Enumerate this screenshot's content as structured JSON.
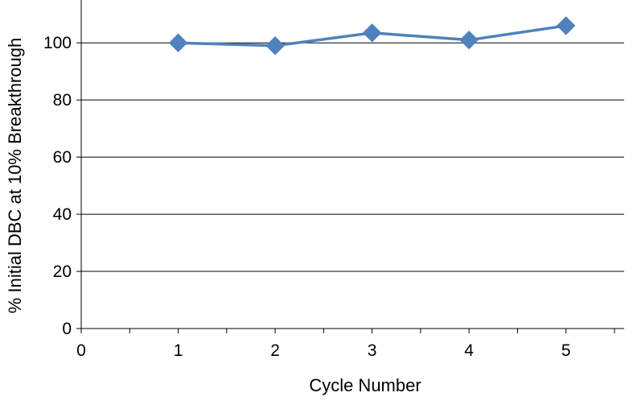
{
  "chart_data": {
    "type": "line",
    "title": "",
    "xlabel": "Cycle Number",
    "ylabel": "% Initial DBC at 10% Breakthrough",
    "xlim": [
      0,
      5.6
    ],
    "ylim": [
      0,
      115
    ],
    "x_ticks": [
      0,
      1,
      2,
      3,
      4,
      5
    ],
    "y_ticks": [
      0,
      20,
      40,
      60,
      80,
      100
    ],
    "grid": "horizontal",
    "legend": "none",
    "series": [
      {
        "color": "#4f81bd",
        "marker": "diamond",
        "x": [
          1,
          2,
          3,
          4,
          5
        ],
        "y": [
          100,
          99,
          103.5,
          101,
          106
        ]
      }
    ]
  }
}
